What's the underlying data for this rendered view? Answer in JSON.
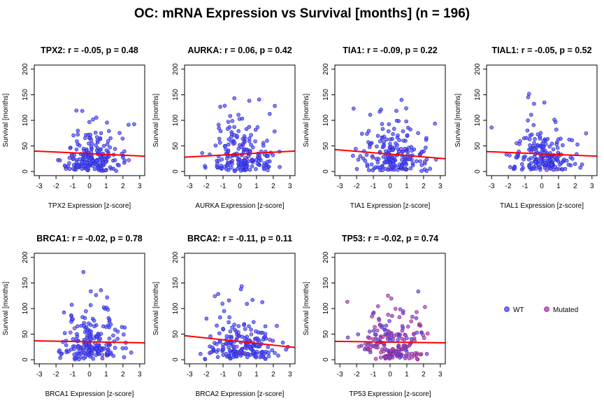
{
  "figure_title": "OC: mRNA Expression vs Survival [months] (n = 196)",
  "colors": {
    "wt": "#4D4DFF",
    "mutated": "#B040B0",
    "regression": "#FF0000"
  },
  "legend": [
    {
      "label": "WT",
      "color": "#4D4DFF"
    },
    {
      "label": "Mutated",
      "color": "#B040B0"
    }
  ],
  "chart_data": [
    {
      "type": "scatter",
      "gene": "TPX2",
      "title": "TPX2: r = -0.05, p = 0.48",
      "xlabel": "TPX2 Expression [z-score]",
      "ylabel": "Survival [months]",
      "xticks": [
        -3,
        -2,
        -1,
        0,
        1,
        2,
        3
      ],
      "yticks": [
        0,
        50,
        100,
        150,
        200
      ],
      "xlim": [
        -3.3,
        3.3
      ],
      "ylim": [
        -8,
        208
      ],
      "regression": {
        "x": [
          -3.3,
          3.3
        ],
        "y": [
          40,
          30
        ]
      }
    },
    {
      "type": "scatter",
      "gene": "AURKA",
      "title": "AURKA: r = 0.06, p = 0.42",
      "xlabel": "AURKA Expression [z-score]",
      "ylabel": "Survival [months]",
      "xticks": [
        -3,
        -2,
        -1,
        0,
        1,
        2,
        3
      ],
      "yticks": [
        0,
        50,
        100,
        150,
        200
      ],
      "xlim": [
        -3.3,
        3.3
      ],
      "ylim": [
        -8,
        208
      ],
      "regression": {
        "x": [
          -3.3,
          3.3
        ],
        "y": [
          28,
          40
        ]
      }
    },
    {
      "type": "scatter",
      "gene": "TIA1",
      "title": "TIA1: r = -0.09, p = 0.22",
      "xlabel": "TIA1 Expression [z-score]",
      "ylabel": "Survival [months]",
      "xticks": [
        -3,
        -2,
        -1,
        0,
        1,
        2,
        3
      ],
      "yticks": [
        0,
        50,
        100,
        150,
        200
      ],
      "xlim": [
        -3.3,
        3.3
      ],
      "ylim": [
        -8,
        208
      ],
      "regression": {
        "x": [
          -3.3,
          3.3
        ],
        "y": [
          43,
          25
        ]
      }
    },
    {
      "type": "scatter",
      "gene": "TIAL1",
      "title": "TIAL1: r = -0.05, p = 0.52",
      "xlabel": "TIAL1 Expression [z-score]",
      "ylabel": "Survival [months]",
      "xticks": [
        -3,
        -2,
        -1,
        0,
        1,
        2,
        3
      ],
      "yticks": [
        0,
        50,
        100,
        150,
        200
      ],
      "xlim": [
        -3.3,
        3.3
      ],
      "ylim": [
        -8,
        208
      ],
      "regression": {
        "x": [
          -3.3,
          3.3
        ],
        "y": [
          39,
          30
        ]
      }
    },
    {
      "type": "scatter",
      "gene": "BRCA1",
      "title": "BRCA1: r = -0.02, p = 0.78",
      "xlabel": "BRCA1 Expression [z-score]",
      "ylabel": "Survival [months]",
      "xticks": [
        -3,
        -2,
        -1,
        0,
        1,
        2,
        3
      ],
      "yticks": [
        0,
        50,
        100,
        150,
        200
      ],
      "xlim": [
        -3.3,
        3.3
      ],
      "ylim": [
        -8,
        208
      ],
      "regression": {
        "x": [
          -3.3,
          3.3
        ],
        "y": [
          37,
          33
        ]
      }
    },
    {
      "type": "scatter",
      "gene": "BRCA2",
      "title": "BRCA2: r = -0.11, p = 0.11",
      "xlabel": "BRCA2 Expression [z-score]",
      "ylabel": "Survival [months]",
      "xticks": [
        -3,
        -2,
        -1,
        0,
        1,
        2,
        3
      ],
      "yticks": [
        0,
        50,
        100,
        150,
        200
      ],
      "xlim": [
        -3.3,
        3.3
      ],
      "ylim": [
        -8,
        208
      ],
      "regression": {
        "x": [
          -3.3,
          3.3
        ],
        "y": [
          47,
          24
        ]
      }
    },
    {
      "type": "scatter",
      "gene": "TP53",
      "title": "TP53: r = -0.02, p = 0.74",
      "xlabel": "TP53 Expression [z-score]",
      "ylabel": "Survival [months]",
      "xticks": [
        -3,
        -2,
        -1,
        0,
        1,
        2,
        3
      ],
      "yticks": [
        0,
        50,
        100,
        150,
        200
      ],
      "xlim": [
        -3.3,
        3.3
      ],
      "ylim": [
        -8,
        208
      ],
      "regression": {
        "x": [
          -3.3,
          3.3
        ],
        "y": [
          36,
          33
        ]
      }
    }
  ]
}
